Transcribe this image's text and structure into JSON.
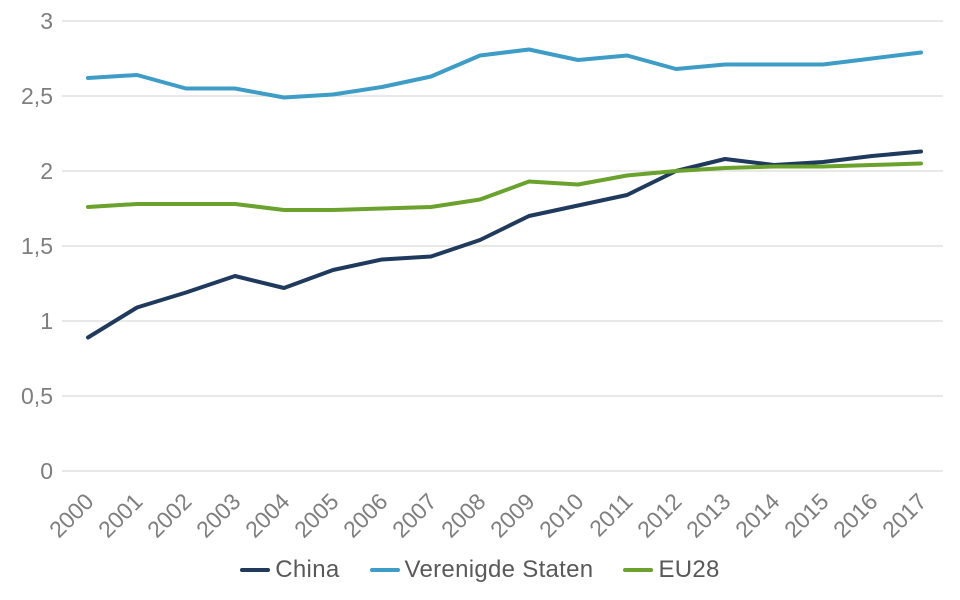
{
  "chart_data": {
    "type": "line",
    "title": "",
    "xlabel": "",
    "ylabel": "",
    "categories": [
      2000,
      2001,
      2002,
      2003,
      2004,
      2005,
      2006,
      2007,
      2008,
      2009,
      2010,
      2011,
      2012,
      2013,
      2014,
      2015,
      2016,
      2017
    ],
    "series": [
      {
        "name": "China",
        "color": "#1f3a5c",
        "values": [
          0.89,
          1.09,
          1.19,
          1.3,
          1.22,
          1.34,
          1.41,
          1.43,
          1.54,
          1.7,
          1.77,
          1.84,
          2.0,
          2.08,
          2.04,
          2.06,
          2.1,
          2.13
        ]
      },
      {
        "name": "Verenigde Staten",
        "color": "#3d9dc6",
        "values": [
          2.62,
          2.64,
          2.55,
          2.55,
          2.49,
          2.51,
          2.56,
          2.63,
          2.77,
          2.81,
          2.74,
          2.77,
          2.68,
          2.71,
          2.71,
          2.71,
          2.75,
          2.79
        ]
      },
      {
        "name": "EU28",
        "color": "#6aa22d",
        "values": [
          1.76,
          1.78,
          1.78,
          1.78,
          1.74,
          1.74,
          1.75,
          1.76,
          1.81,
          1.93,
          1.91,
          1.97,
          2.0,
          2.02,
          2.03,
          2.03,
          2.04,
          2.05
        ]
      }
    ],
    "y_axis": {
      "min": 0,
      "max": 3,
      "tick_values": [
        3,
        2.5,
        2,
        1.5,
        1,
        0.5,
        0
      ],
      "tick_labels": [
        "3",
        "2,5",
        "2",
        "1,5",
        "1",
        "0,5",
        "0"
      ]
    },
    "x_axis": {
      "tick_labels": [
        "2000",
        "2001",
        "2002",
        "2003",
        "2004",
        "2005",
        "2006",
        "2007",
        "2008",
        "2009",
        "2010",
        "2011",
        "2012",
        "2013",
        "2014",
        "2015",
        "2016",
        "2017"
      ],
      "label_rotation_deg": -45
    },
    "grid": true,
    "legend_position": "bottom"
  },
  "colors": {
    "background": "#ffffff",
    "gridline": "#d9d9d9",
    "axis_text": "#7e7e7e",
    "legend_text": "#595959"
  }
}
